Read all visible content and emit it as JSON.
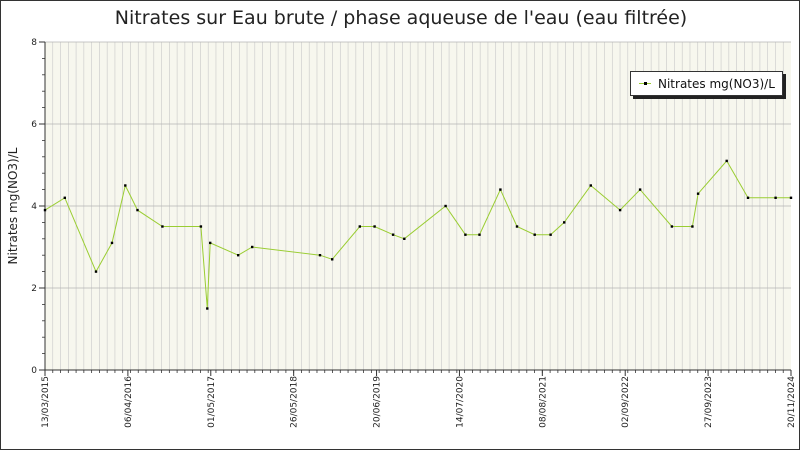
{
  "colors": {
    "background": "#ffffff",
    "plot_background": "#f7f7ee",
    "grid": "#c8c8c8",
    "series_line": "#9acd32",
    "point": "#000000",
    "axis": "#333333"
  },
  "chart_data": {
    "type": "line",
    "title": "Nitrates sur Eau brute / phase aqueuse de l'eau (eau filtrée)",
    "xlabel": "",
    "ylabel": "Nitrates mg(NO3)/L",
    "ylim": [
      0,
      8
    ],
    "yticks": [
      0,
      2,
      4,
      6,
      8
    ],
    "xlim": [
      "2015-03-13",
      "2024-11-20"
    ],
    "xticks": [
      "13/03/2015",
      "06/04/2016",
      "01/05/2017",
      "26/05/2018",
      "20/06/2019",
      "14/07/2020",
      "08/08/2021",
      "02/09/2022",
      "27/09/2023",
      "20/11/2024"
    ],
    "grid": true,
    "legend_position": "top-right",
    "series": [
      {
        "name": "Nitrates mg(NO3)/L",
        "color": "#9acd32",
        "marker": "dot",
        "points": [
          {
            "x": "2015-03-13",
            "y": 3.9
          },
          {
            "x": "2015-06-15",
            "y": 4.2
          },
          {
            "x": "2015-11-10",
            "y": 2.4
          },
          {
            "x": "2016-01-25",
            "y": 3.1
          },
          {
            "x": "2016-03-28",
            "y": 4.5
          },
          {
            "x": "2016-05-25",
            "y": 3.9
          },
          {
            "x": "2016-09-20",
            "y": 3.5
          },
          {
            "x": "2017-03-22",
            "y": 3.5
          },
          {
            "x": "2017-04-21",
            "y": 1.5
          },
          {
            "x": "2017-05-05",
            "y": 3.1
          },
          {
            "x": "2017-09-15",
            "y": 2.8
          },
          {
            "x": "2017-11-20",
            "y": 3.0
          },
          {
            "x": "2018-10-08",
            "y": 2.8
          },
          {
            "x": "2018-12-05",
            "y": 2.7
          },
          {
            "x": "2019-04-15",
            "y": 3.5
          },
          {
            "x": "2019-06-24",
            "y": 3.5
          },
          {
            "x": "2019-09-20",
            "y": 3.3
          },
          {
            "x": "2019-11-12",
            "y": 3.2
          },
          {
            "x": "2020-05-26",
            "y": 4.0
          },
          {
            "x": "2020-08-28",
            "y": 3.3
          },
          {
            "x": "2020-11-03",
            "y": 3.3
          },
          {
            "x": "2021-02-10",
            "y": 4.4
          },
          {
            "x": "2021-04-30",
            "y": 3.5
          },
          {
            "x": "2021-07-23",
            "y": 3.3
          },
          {
            "x": "2021-10-06",
            "y": 3.3
          },
          {
            "x": "2021-12-10",
            "y": 3.6
          },
          {
            "x": "2022-04-15",
            "y": 4.5
          },
          {
            "x": "2022-09-01",
            "y": 3.9
          },
          {
            "x": "2022-12-05",
            "y": 4.4
          },
          {
            "x": "2023-05-05",
            "y": 3.5
          },
          {
            "x": "2023-08-10",
            "y": 3.5
          },
          {
            "x": "2023-09-06",
            "y": 4.3
          },
          {
            "x": "2024-01-20",
            "y": 5.1
          },
          {
            "x": "2024-04-30",
            "y": 4.2
          },
          {
            "x": "2024-09-08",
            "y": 4.2
          },
          {
            "x": "2024-11-20",
            "y": 4.2
          }
        ]
      }
    ]
  }
}
